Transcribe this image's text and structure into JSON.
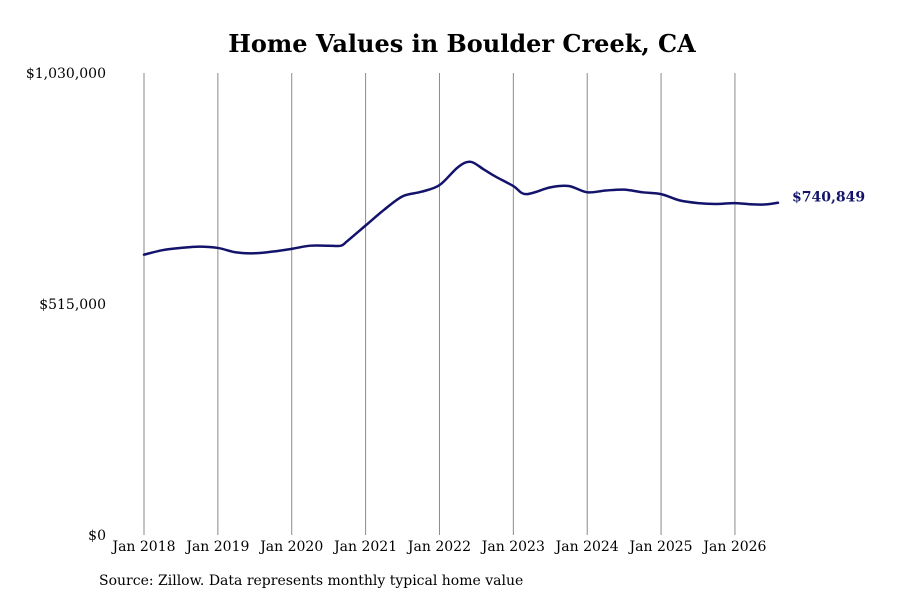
{
  "chart_data": {
    "type": "line",
    "title": "Home Values in Boulder Creek, CA",
    "xlabel": "",
    "ylabel": "",
    "xlim": [
      2018.0,
      2026.583
    ],
    "ylim": [
      0,
      1030000
    ],
    "grid": "vertical",
    "y_ticks": [
      0,
      515000,
      1030000
    ],
    "y_tick_labels": [
      "$0",
      "$515,000",
      "$1,030,000"
    ],
    "x_ticks": [
      2018,
      2019,
      2020,
      2021,
      2022,
      2023,
      2024,
      2025,
      2026
    ],
    "x_tick_labels": [
      "Jan 2018",
      "Jan 2019",
      "Jan 2020",
      "Jan 2021",
      "Jan 2022",
      "Jan 2023",
      "Jan 2024",
      "Jan 2025",
      "Jan 2026"
    ],
    "series": [
      {
        "color": "#13136b",
        "end_label": "$740,849",
        "points": [
          [
            2018.0,
            625000
          ],
          [
            2018.25,
            635000
          ],
          [
            2018.5,
            640000
          ],
          [
            2018.75,
            643000
          ],
          [
            2019.0,
            640000
          ],
          [
            2019.25,
            630000
          ],
          [
            2019.5,
            628000
          ],
          [
            2019.75,
            632000
          ],
          [
            2020.0,
            638000
          ],
          [
            2020.25,
            645000
          ],
          [
            2020.5,
            645000
          ],
          [
            2020.667,
            645000
          ],
          [
            2020.75,
            655000
          ],
          [
            2021.0,
            690000
          ],
          [
            2021.25,
            725000
          ],
          [
            2021.5,
            755000
          ],
          [
            2021.75,
            765000
          ],
          [
            2022.0,
            780000
          ],
          [
            2022.25,
            820000
          ],
          [
            2022.42,
            832000
          ],
          [
            2022.6,
            815000
          ],
          [
            2022.75,
            800000
          ],
          [
            2023.0,
            778000
          ],
          [
            2023.17,
            760000
          ],
          [
            2023.5,
            775000
          ],
          [
            2023.75,
            778000
          ],
          [
            2024.0,
            764000
          ],
          [
            2024.25,
            768000
          ],
          [
            2024.5,
            770000
          ],
          [
            2024.75,
            764000
          ],
          [
            2025.0,
            760000
          ],
          [
            2025.25,
            746000
          ],
          [
            2025.5,
            740000
          ],
          [
            2025.75,
            738000
          ],
          [
            2026.0,
            740000
          ],
          [
            2026.25,
            737000
          ],
          [
            2026.42,
            737000
          ],
          [
            2026.583,
            740849
          ]
        ]
      }
    ]
  },
  "footer": {
    "source_note": "Source: Zillow. Data represents monthly typical home value"
  }
}
